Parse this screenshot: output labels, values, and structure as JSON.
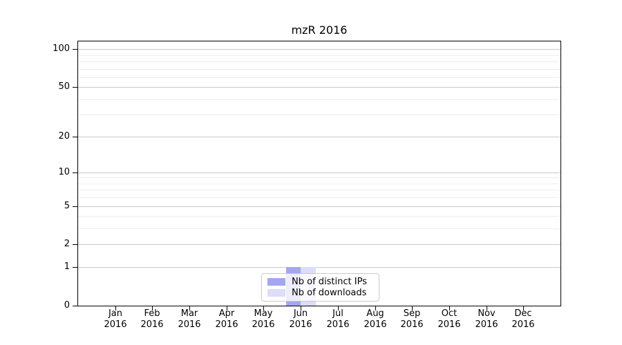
{
  "chart_data": {
    "type": "bar",
    "title": "mzR 2016",
    "categories": [
      "Jan",
      "Feb",
      "Mar",
      "Apr",
      "May",
      "Jun",
      "Jul",
      "Aug",
      "Sep",
      "Oct",
      "Nov",
      "Dec"
    ],
    "category_year": "2016",
    "series": [
      {
        "name": "Nb of distinct IPs",
        "color": "#a3a7ef",
        "values": [
          0,
          0,
          0,
          0,
          0,
          1,
          0,
          0,
          0,
          0,
          0,
          0
        ]
      },
      {
        "name": "Nb of downloads",
        "color": "#dbddf9",
        "values": [
          0,
          0,
          0,
          0,
          0,
          1,
          0,
          0,
          0,
          0,
          0,
          0
        ]
      }
    ],
    "xlabel": "",
    "ylabel": "",
    "y_ticks": [
      0,
      1,
      2,
      5,
      10,
      20,
      50,
      100
    ],
    "y_minor_ticks": [
      3,
      4,
      6,
      7,
      8,
      9,
      30,
      40,
      60,
      70,
      80,
      90
    ],
    "scale": "log10(1+y)",
    "ylim": [
      0,
      115
    ],
    "grid": true,
    "legend_position": "lower center",
    "legend_entries": [
      "Nb of distinct IPs",
      "Nb of downloads"
    ]
  },
  "colors": {
    "axis": "#000000",
    "major_grid": "#c9c9c9",
    "minor_grid": "#ededed",
    "legend_border": "#c9c9c9",
    "background": "#ffffff"
  }
}
